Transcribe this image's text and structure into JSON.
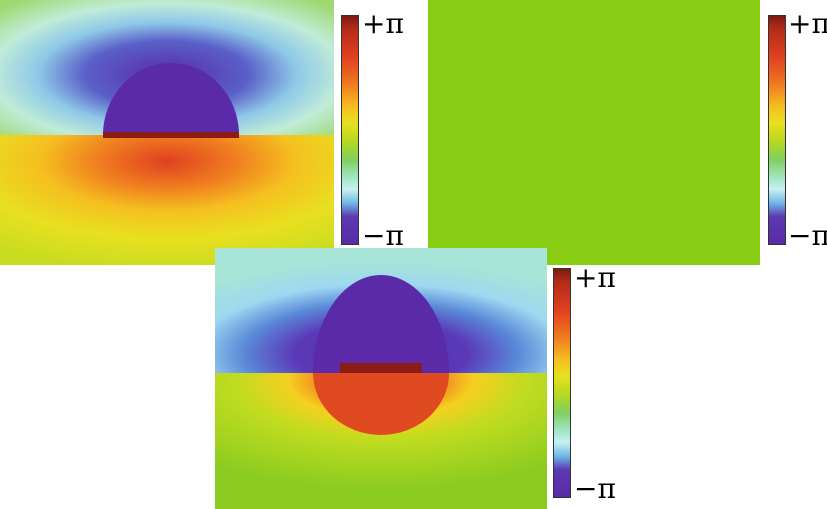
{
  "panels": [
    {
      "name": "phase-map-top-left"
    },
    {
      "name": "phase-map-top-right",
      "fill": "#88cc14"
    },
    {
      "name": "phase-map-bottom"
    }
  ],
  "colorbar": {
    "max_label": "+π",
    "min_label": "−π"
  },
  "colors": {
    "low": "#5a2aa8",
    "mid": "#88cc14",
    "high": "#e04020"
  }
}
